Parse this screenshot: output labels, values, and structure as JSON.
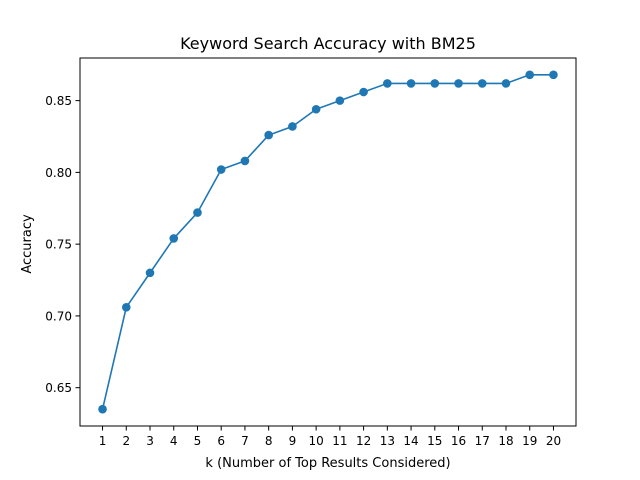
{
  "chart_data": {
    "type": "line",
    "title": "Keyword Search Accuracy with BM25",
    "xlabel": "k (Number of Top Results Considered)",
    "ylabel": "Accuracy",
    "x": [
      1,
      2,
      3,
      4,
      5,
      6,
      7,
      8,
      9,
      10,
      11,
      12,
      13,
      14,
      15,
      16,
      17,
      18,
      19,
      20
    ],
    "xticks": [
      "1",
      "2",
      "3",
      "4",
      "5",
      "6",
      "7",
      "8",
      "9",
      "10",
      "11",
      "12",
      "13",
      "14",
      "15",
      "16",
      "17",
      "18",
      "19",
      "20"
    ],
    "yticks": [
      "0.65",
      "0.70",
      "0.75",
      "0.80",
      "0.85"
    ],
    "ytick_values": [
      0.65,
      0.7,
      0.75,
      0.8,
      0.85
    ],
    "series": [
      {
        "values": [
          0.635,
          0.706,
          0.73,
          0.754,
          0.772,
          0.802,
          0.808,
          0.826,
          0.832,
          0.844,
          0.85,
          0.856,
          0.862,
          0.862,
          0.862,
          0.862,
          0.862,
          0.862,
          0.868,
          0.868
        ],
        "color": "#1f77b4",
        "marker": "circle"
      }
    ],
    "xlim": [
      0.05,
      20.95
    ],
    "ylim": [
      0.6233,
      0.8797
    ],
    "grid": false,
    "legend": "none"
  }
}
